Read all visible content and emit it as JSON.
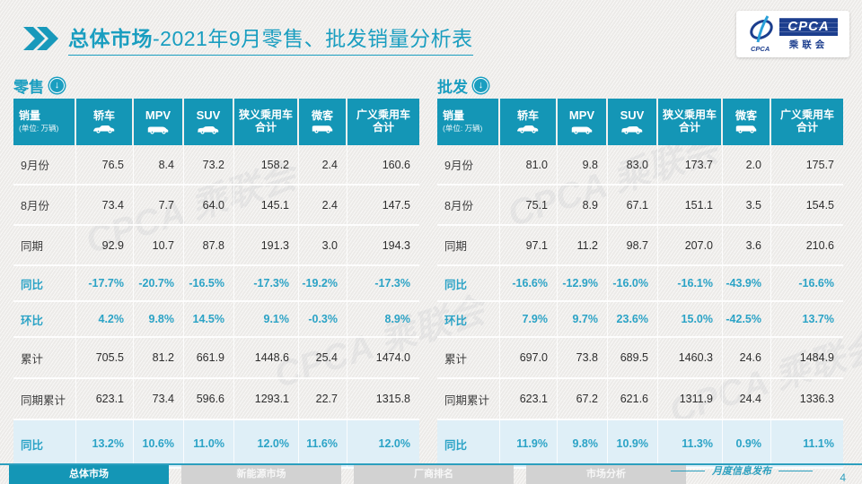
{
  "slide": {
    "title_bold": "总体市场",
    "title_rest": "-2021年9月零售、批发销量分析表",
    "footer_note": "月度信息发布",
    "page_number": "4",
    "watermark": "CPCA 乘联会"
  },
  "logo": {
    "name": "CPCA",
    "subtitle": "乘联会",
    "mark_icon": "pen-swoosh-icon"
  },
  "colors": {
    "accent_teal": "#1496B6",
    "title_teal": "#1A9EC0",
    "percent_teal": "#2BA3C6",
    "highlight_row_bg": "#DFEFF7",
    "logo_blue": "#1C3E8E"
  },
  "columns": [
    {
      "label": "销量",
      "sub": "(单位: 万辆)"
    },
    {
      "label": "轿车",
      "icon": "sedan-icon"
    },
    {
      "label": "MPV",
      "icon": "mpv-icon",
      "latin": true
    },
    {
      "label": "SUV",
      "icon": "suv-icon",
      "latin": true
    },
    {
      "label": "狭义乘用车",
      "label2": "合计"
    },
    {
      "label": "微客",
      "icon": "microvan-icon"
    },
    {
      "label": "广义乘用车",
      "label2": "合计"
    }
  ],
  "tables": [
    {
      "name": "零售",
      "rows": [
        {
          "label": "9月份",
          "style": "normal",
          "values": [
            "76.5",
            "8.4",
            "73.2",
            "158.2",
            "2.4",
            "160.6"
          ]
        },
        {
          "label": "8月份",
          "style": "normal",
          "values": [
            "73.4",
            "7.7",
            "64.0",
            "145.1",
            "2.4",
            "147.5"
          ]
        },
        {
          "label": "同期",
          "style": "normal",
          "values": [
            "92.9",
            "10.7",
            "87.8",
            "191.3",
            "3.0",
            "194.3"
          ]
        },
        {
          "label": "同比",
          "style": "pct",
          "values": [
            "-17.7%",
            "-20.7%",
            "-16.5%",
            "-17.3%",
            "-19.2%",
            "-17.3%"
          ]
        },
        {
          "label": "环比",
          "style": "pct",
          "values": [
            "4.2%",
            "9.8%",
            "14.5%",
            "9.1%",
            "-0.3%",
            "8.9%"
          ]
        },
        {
          "label": "累计",
          "style": "normal",
          "values": [
            "705.5",
            "81.2",
            "661.9",
            "1448.6",
            "25.4",
            "1474.0"
          ]
        },
        {
          "label": "同期累计",
          "style": "normal",
          "values": [
            "623.1",
            "73.4",
            "596.6",
            "1293.1",
            "22.7",
            "1315.8"
          ]
        },
        {
          "label": "同比",
          "style": "pct hl",
          "values": [
            "13.2%",
            "10.6%",
            "11.0%",
            "12.0%",
            "11.6%",
            "12.0%"
          ]
        }
      ]
    },
    {
      "name": "批发",
      "rows": [
        {
          "label": "9月份",
          "style": "normal",
          "values": [
            "81.0",
            "9.8",
            "83.0",
            "173.7",
            "2.0",
            "175.7"
          ]
        },
        {
          "label": "8月份",
          "style": "normal",
          "values": [
            "75.1",
            "8.9",
            "67.1",
            "151.1",
            "3.5",
            "154.5"
          ]
        },
        {
          "label": "同期",
          "style": "normal",
          "values": [
            "97.1",
            "11.2",
            "98.7",
            "207.0",
            "3.6",
            "210.6"
          ]
        },
        {
          "label": "同比",
          "style": "pct",
          "values": [
            "-16.6%",
            "-12.9%",
            "-16.0%",
            "-16.1%",
            "-43.9%",
            "-16.6%"
          ]
        },
        {
          "label": "环比",
          "style": "pct",
          "values": [
            "7.9%",
            "9.7%",
            "23.6%",
            "15.0%",
            "-42.5%",
            "13.7%"
          ]
        },
        {
          "label": "累计",
          "style": "normal",
          "values": [
            "697.0",
            "73.8",
            "689.5",
            "1460.3",
            "24.6",
            "1484.9"
          ]
        },
        {
          "label": "同期累计",
          "style": "normal",
          "values": [
            "623.1",
            "67.2",
            "621.6",
            "1311.9",
            "24.4",
            "1336.3"
          ]
        },
        {
          "label": "同比",
          "style": "pct hl",
          "values": [
            "11.9%",
            "9.8%",
            "10.9%",
            "11.3%",
            "0.9%",
            "11.1%"
          ]
        }
      ]
    }
  ],
  "footer_tabs": [
    {
      "label": "总体市场",
      "active": true
    },
    {
      "label": "新能源市场",
      "active": false
    },
    {
      "label": "厂商排名",
      "active": false
    },
    {
      "label": "市场分析",
      "active": false
    }
  ]
}
